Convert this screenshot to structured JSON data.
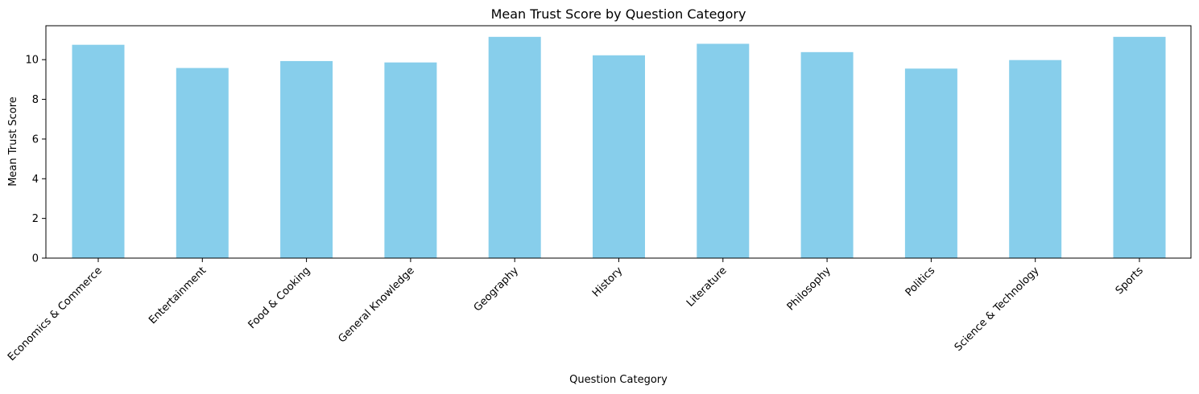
{
  "chart_data": {
    "type": "bar",
    "title": "Mean Trust Score by Question Category",
    "xlabel": "Question Category",
    "ylabel": "Mean Trust Score",
    "categories": [
      "Economics & Commerce",
      "Entertainment",
      "Food & Cooking",
      "General Knowledge",
      "Geography",
      "History",
      "Literature",
      "Philosophy",
      "Politics",
      "Science & Technology",
      "Sports"
    ],
    "values": [
      10.75,
      9.58,
      9.93,
      9.86,
      11.15,
      10.22,
      10.8,
      10.38,
      9.55,
      9.98,
      11.15
    ],
    "yticks": [
      0,
      2,
      4,
      6,
      8,
      10
    ],
    "ylim": [
      0,
      11.71
    ],
    "grid": false,
    "legend": "none",
    "bar_color": "#87ceeb"
  }
}
